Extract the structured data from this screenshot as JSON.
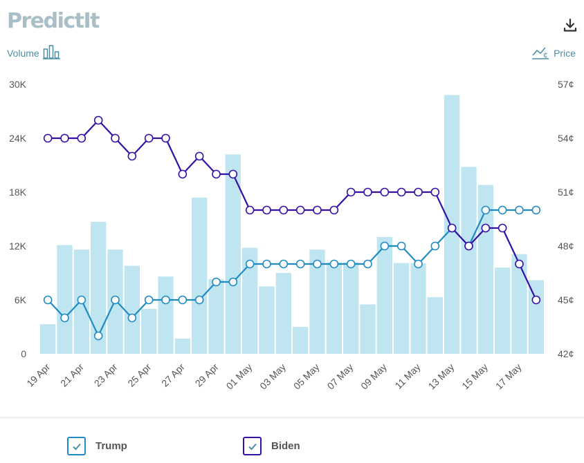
{
  "header": {
    "logo_text": "PredictIt",
    "volume_label": "Volume",
    "price_label": "Price"
  },
  "icons": {
    "download": "download-icon",
    "volume": "bar-chart-icon",
    "price": "line-chart-icon",
    "check": "check-icon"
  },
  "legend": {
    "items": [
      {
        "label": "Trump",
        "color": "#1f8bc2"
      },
      {
        "label": "Biden",
        "color": "#3410a6"
      }
    ]
  },
  "chart_data": {
    "type": "bar",
    "categories": [
      "19 Apr",
      "20 Apr",
      "21 Apr",
      "22 Apr",
      "23 Apr",
      "24 Apr",
      "25 Apr",
      "26 Apr",
      "27 Apr",
      "28 Apr",
      "29 Apr",
      "30 Apr",
      "01 May",
      "02 May",
      "03 May",
      "04 May",
      "05 May",
      "06 May",
      "07 May",
      "08 May",
      "09 May",
      "10 May",
      "11 May",
      "12 May",
      "13 May",
      "14 May",
      "15 May",
      "16 May",
      "17 May",
      "18 May"
    ],
    "x_tick_labels": [
      "19 Apr",
      "21 Apr",
      "23 Apr",
      "25 Apr",
      "27 Apr",
      "29 Apr",
      "01 May",
      "03 May",
      "05 May",
      "07 May",
      "09 May",
      "11 May",
      "13 May",
      "15 May",
      "17 May"
    ],
    "volume": {
      "values": [
        3300,
        12100,
        11600,
        14700,
        11600,
        9800,
        5000,
        8600,
        1700,
        17400,
        8300,
        22200,
        11800,
        7500,
        9000,
        3000,
        11600,
        10200,
        10200,
        5500,
        13000,
        10100,
        10100,
        6300,
        28800,
        20800,
        18800,
        9600,
        11100,
        8200
      ],
      "ylim": [
        0,
        30000
      ],
      "ticks": [
        0,
        6000,
        12000,
        18000,
        24000,
        30000
      ],
      "tick_labels": [
        "0",
        "6K",
        "12K",
        "18K",
        "24K",
        "30K"
      ],
      "color": "#bfe6f0"
    },
    "price": {
      "ylim": [
        42,
        57
      ],
      "ticks": [
        42,
        45,
        48,
        51,
        54,
        57
      ],
      "tick_labels": [
        "42¢",
        "45¢",
        "48¢",
        "51¢",
        "54¢",
        "57¢"
      ]
    },
    "series": [
      {
        "name": "Trump",
        "color": "#1f8bc2",
        "values": [
          45,
          44,
          45,
          43,
          45,
          44,
          45,
          45,
          45,
          45,
          46,
          46,
          47,
          47,
          47,
          47,
          47,
          47,
          47,
          47,
          48,
          48,
          47,
          48,
          49,
          48,
          50,
          50,
          50,
          50
        ]
      },
      {
        "name": "Biden",
        "color": "#3410a6",
        "values": [
          54,
          54,
          54,
          55,
          54,
          53,
          54,
          54,
          52,
          53,
          52,
          52,
          50,
          50,
          50,
          50,
          50,
          50,
          51,
          51,
          51,
          51,
          51,
          51,
          49,
          48,
          49,
          49,
          47,
          45
        ]
      }
    ]
  }
}
